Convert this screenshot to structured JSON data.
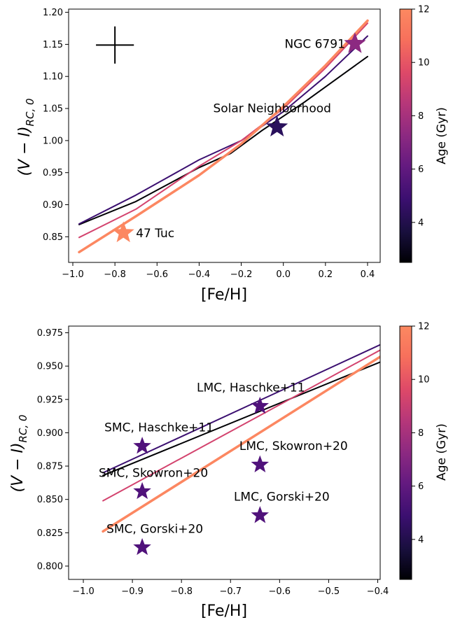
{
  "chart_data": [
    {
      "type": "line",
      "xlabel": "[Fe/H]",
      "ylabel": "(V − I)",
      "ylabel_sub": "RC, 0",
      "xlim": [
        -1.02,
        0.46
      ],
      "ylim": [
        0.81,
        1.205
      ],
      "xticks": [
        -1.0,
        -0.8,
        -0.6,
        -0.4,
        -0.2,
        0.0,
        0.2,
        0.4
      ],
      "xtick_labels": [
        "−1.0",
        "−0.8",
        "−0.6",
        "−0.4",
        "−0.2",
        "0.0",
        "0.2",
        "0.4"
      ],
      "yticks": [
        0.85,
        0.9,
        0.95,
        1.0,
        1.05,
        1.1,
        1.15,
        1.2
      ],
      "ytick_labels": [
        "0.85",
        "0.90",
        "0.95",
        "1.00",
        "1.05",
        "1.10",
        "1.15",
        "1.20"
      ],
      "series": [
        {
          "age": 3.0,
          "color": "#000004",
          "width": 2,
          "x": [
            -0.97,
            -0.7,
            -0.4,
            -0.25,
            -0.1,
            0.1,
            0.4
          ],
          "y": [
            0.869,
            0.905,
            0.958,
            0.98,
            1.016,
            1.06,
            1.131
          ]
        },
        {
          "age": 5.0,
          "color": "#3b0f70",
          "width": 2,
          "x": [
            -0.97,
            -0.7,
            -0.4,
            -0.2,
            0.0,
            0.2,
            0.4
          ],
          "y": [
            0.87,
            0.915,
            0.97,
            1.0,
            1.045,
            1.1,
            1.163
          ]
        },
        {
          "age": 8.0,
          "color": "#d3436e",
          "width": 2,
          "x": [
            -0.97,
            -0.7,
            -0.4,
            -0.2,
            0.0,
            0.2,
            0.4
          ],
          "y": [
            0.849,
            0.893,
            0.96,
            1.0,
            1.05,
            1.113,
            1.183
          ]
        },
        {
          "age": 12.0,
          "color": "#fc8761",
          "width": 3.5,
          "x": [
            -0.97,
            -0.7,
            -0.4,
            -0.2,
            0.0,
            0.2,
            0.4
          ],
          "y": [
            0.826,
            0.882,
            0.946,
            0.995,
            1.053,
            1.117,
            1.187
          ]
        }
      ],
      "points": [
        {
          "label": "47 Tuc",
          "x": -0.76,
          "y": 0.856,
          "age": 12.0,
          "color": "#fc8761",
          "label_pos": "right"
        },
        {
          "label": "Solar Neighborhood",
          "x": -0.03,
          "y": 1.021,
          "age": 4.0,
          "color": "#2a115c",
          "label_pos": "above"
        },
        {
          "label": "NGC 6791",
          "x": 0.34,
          "y": 1.151,
          "age": 8.0,
          "color": "#8c2981",
          "label_pos": "left"
        }
      ],
      "error_cross": {
        "x": -0.8,
        "y": 1.149,
        "dx": 0.09,
        "dy": 0.029
      },
      "colorbar": {
        "label": "Age (Gyr)",
        "min": 2.5,
        "max": 12.0,
        "ticks": [
          4,
          6,
          8,
          10,
          12
        ],
        "tick_labels": [
          "4",
          "6",
          "8",
          "10",
          "12"
        ]
      }
    },
    {
      "type": "line",
      "xlabel": "[Fe/H]",
      "ylabel": "(V − I)",
      "ylabel_sub": "RC, 0",
      "xlim": [
        -1.03,
        -0.395
      ],
      "ylim": [
        0.79,
        0.98
      ],
      "xticks": [
        -1.0,
        -0.9,
        -0.8,
        -0.7,
        -0.6,
        -0.5,
        -0.4
      ],
      "xtick_labels": [
        "−1.0",
        "−0.9",
        "−0.8",
        "−0.7",
        "−0.6",
        "−0.5",
        "−0.4"
      ],
      "yticks": [
        0.8,
        0.825,
        0.85,
        0.875,
        0.9,
        0.925,
        0.95,
        0.975
      ],
      "ytick_labels": [
        "0.800",
        "0.825",
        "0.850",
        "0.875",
        "0.900",
        "0.925",
        "0.950",
        "0.975"
      ],
      "series": [
        {
          "age": 3.0,
          "color": "#000004",
          "width": 2,
          "x": [
            -0.96,
            -0.395
          ],
          "y": [
            0.868,
            0.953
          ]
        },
        {
          "age": 5.0,
          "color": "#3b0f70",
          "width": 2,
          "x": [
            -0.96,
            -0.395
          ],
          "y": [
            0.87,
            0.966
          ]
        },
        {
          "age": 8.0,
          "color": "#d3436e",
          "width": 2,
          "x": [
            -0.96,
            -0.395
          ],
          "y": [
            0.849,
            0.962
          ]
        },
        {
          "age": 12.0,
          "color": "#fc8761",
          "width": 3.5,
          "x": [
            -0.96,
            -0.395
          ],
          "y": [
            0.826,
            0.957
          ]
        }
      ],
      "points": [
        {
          "label": "LMC, Haschke+11",
          "x": -0.64,
          "y": 0.92,
          "color": "#50127b",
          "label_dx": -13,
          "label_dy": -21
        },
        {
          "label": "SMC, Haschke+11",
          "x": -0.88,
          "y": 0.89,
          "color": "#50127b",
          "label_dx": 24,
          "label_dy": -21
        },
        {
          "label": "LMC, Skowron+20",
          "x": -0.64,
          "y": 0.876,
          "color": "#50127b",
          "label_dx": 48,
          "label_dy": -21
        },
        {
          "label": "SMC, Skowron+20",
          "x": -0.88,
          "y": 0.856,
          "color": "#50127b",
          "label_dx": 16,
          "label_dy": -21
        },
        {
          "label": "LMC, Gorski+20",
          "x": -0.64,
          "y": 0.838,
          "color": "#50127b",
          "label_dx": 31,
          "label_dy": -21
        },
        {
          "label": "SMC, Gorski+20",
          "x": -0.88,
          "y": 0.814,
          "color": "#50127b",
          "label_dx": 18,
          "label_dy": -21
        }
      ],
      "colorbar": {
        "label": "Age (Gyr)",
        "min": 2.5,
        "max": 12.0,
        "ticks": [
          4,
          6,
          8,
          10,
          12
        ],
        "tick_labels": [
          "4",
          "6",
          "8",
          "10",
          "12"
        ]
      }
    }
  ]
}
